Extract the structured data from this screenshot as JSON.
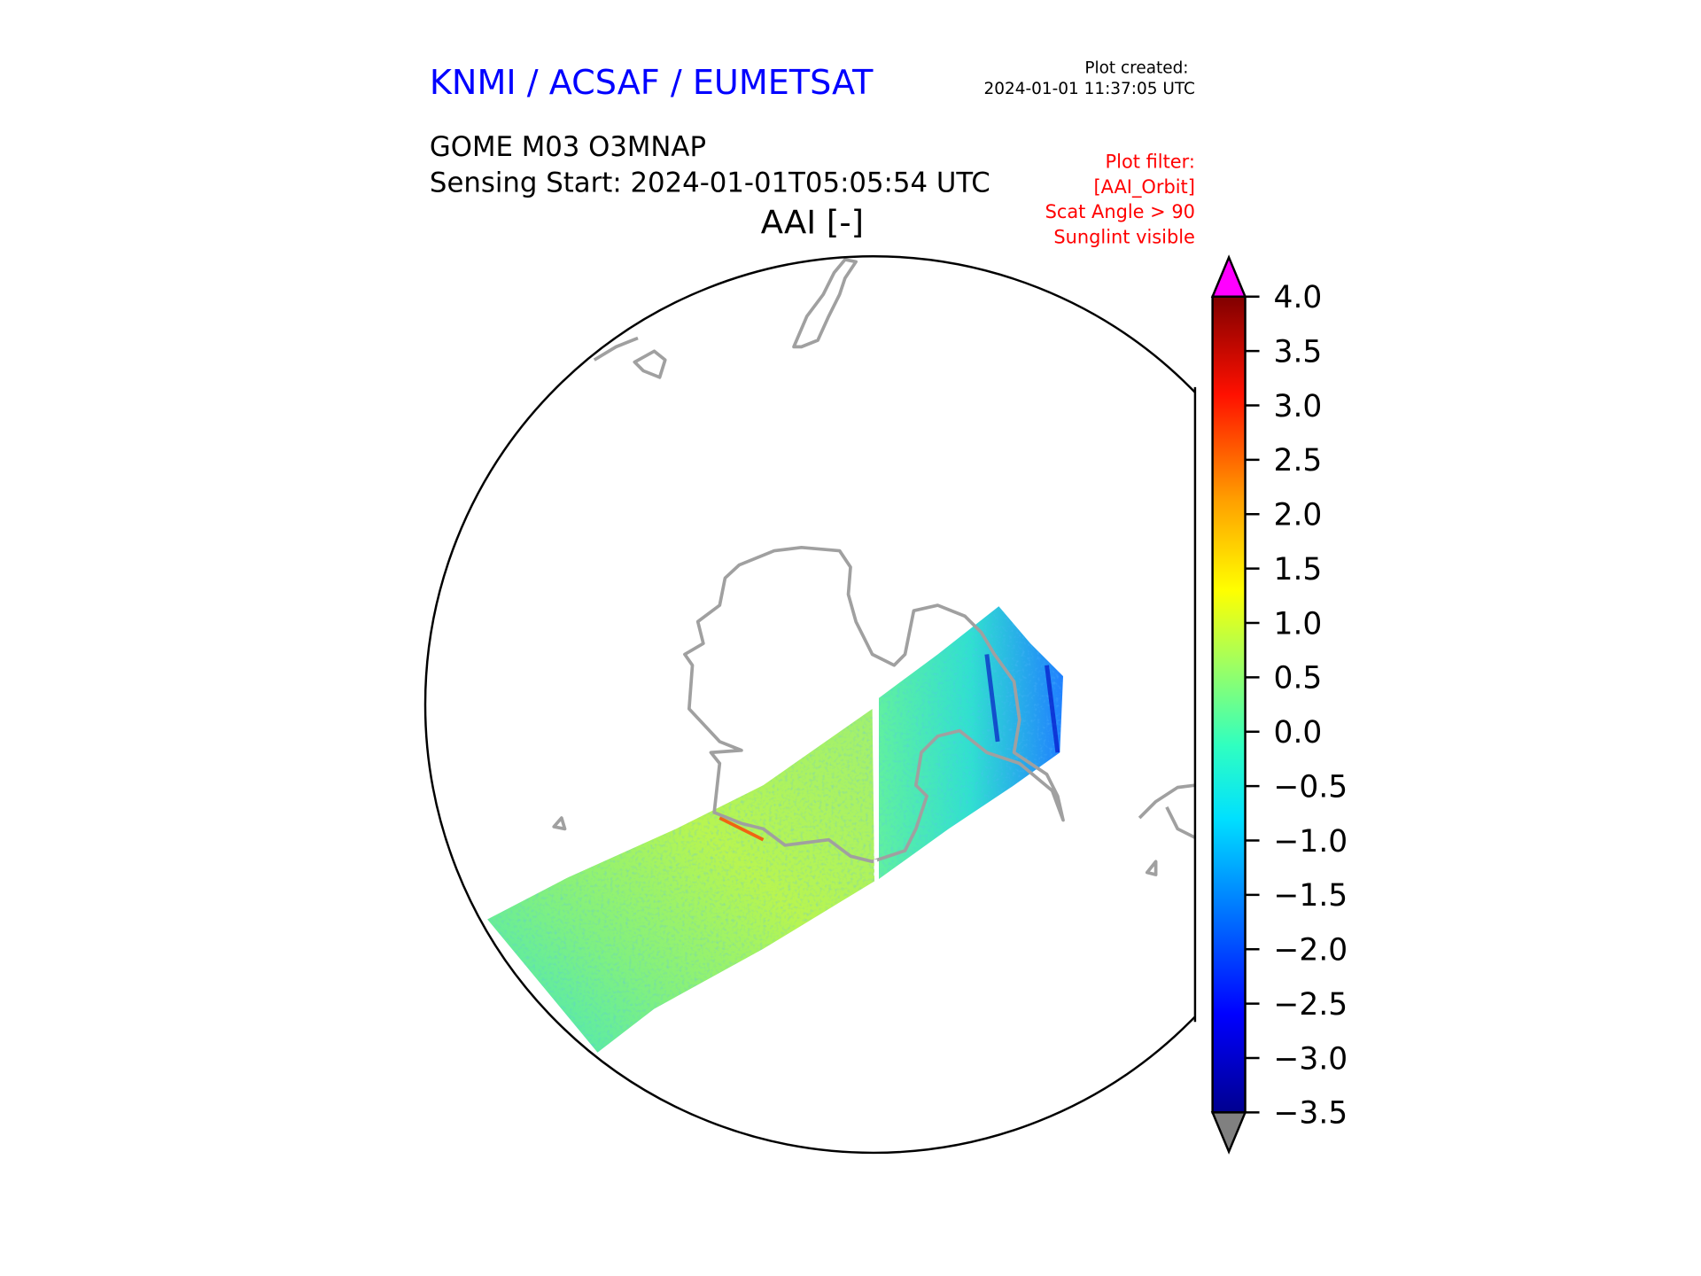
{
  "header": {
    "organization": "KNMI / ACSAF / EUMETSAT",
    "plot_created_label": "Plot created:",
    "plot_created_value": "2024-01-01 11:37:05 UTC",
    "product": "GOME M03 O3MNAP",
    "sensing_start": "Sensing Start: 2024-01-01T05:05:54 UTC",
    "variable_title": "AAI [-]"
  },
  "filters": {
    "lines": [
      "Plot filter:",
      "[AAI_Orbit]",
      "Scat Angle > 90",
      "Sunglint visible"
    ]
  },
  "colors": {
    "organization": "#0000ff",
    "filter_text": "#ff0000",
    "coastline": "#a0a0a0",
    "over_color": "#ff00ff",
    "under_color": "#808080"
  },
  "chart_data": {
    "type": "heatmap",
    "title": "AAI [-]",
    "colormap": "jet",
    "colorbar": {
      "vmin": -3.5,
      "vmax": 4.0,
      "ticks": [
        4.0,
        3.5,
        3.0,
        2.5,
        2.0,
        1.5,
        1.0,
        0.5,
        0.0,
        -0.5,
        -1.0,
        -1.5,
        -2.0,
        -2.5,
        -3.0,
        -3.5
      ],
      "tick_labels": [
        "4.0",
        "3.5",
        "3.0",
        "2.5",
        "2.0",
        "1.5",
        "1.0",
        "0.5",
        "0.0",
        "−0.5",
        "−1.0",
        "−1.5",
        "−2.0",
        "−2.5",
        "−3.0",
        "−3.5"
      ],
      "extend": "both"
    },
    "projection": "south polar stereographic",
    "typical_swath_values": "mostly -0.5 to 1.0, patches near -2.5"
  }
}
